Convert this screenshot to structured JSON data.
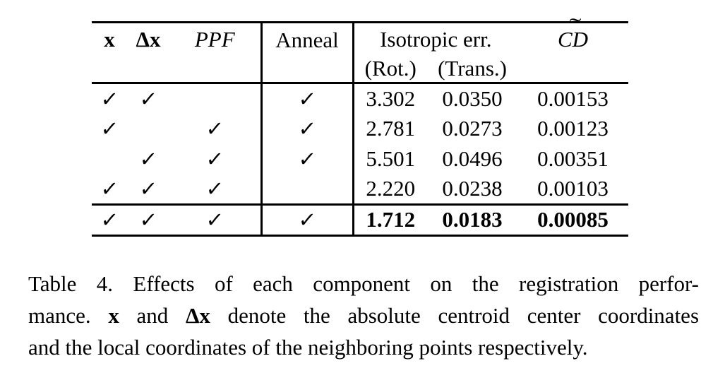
{
  "colors": {
    "text": "#000000",
    "background": "#ffffff",
    "rule": "#000000"
  },
  "table": {
    "header": {
      "x": "x",
      "dx": "Δx",
      "ppf": "PPF",
      "anneal": "Anneal",
      "isotropic": "Isotropic err.",
      "rot": "(Rot.)",
      "trans": "(Trans.)",
      "cd": "CD",
      "cd_tilde": "˜"
    },
    "check_glyph": "✓",
    "rows": [
      {
        "x": "✓",
        "dx": "✓",
        "ppf": "",
        "anneal": "✓",
        "rot": "3.302",
        "trans": "0.0350",
        "cd": "0.00153"
      },
      {
        "x": "✓",
        "dx": "",
        "ppf": "✓",
        "anneal": "✓",
        "rot": "2.781",
        "trans": "0.0273",
        "cd": "0.00123"
      },
      {
        "x": "",
        "dx": "✓",
        "ppf": "✓",
        "anneal": "✓",
        "rot": "5.501",
        "trans": "0.0496",
        "cd": "0.00351"
      },
      {
        "x": "✓",
        "dx": "✓",
        "ppf": "✓",
        "anneal": "",
        "rot": "2.220",
        "trans": "0.0238",
        "cd": "0.00103"
      },
      {
        "x": "✓",
        "dx": "✓",
        "ppf": "✓",
        "anneal": "✓",
        "rot": "1.712",
        "trans": "0.0183",
        "cd": "0.00085"
      }
    ]
  },
  "caption": {
    "line1": "Table 4. Effects of each component on the registration perfor-",
    "line2_pre": "mance. ",
    "line2_bold1": "x",
    "line2_mid": " and ",
    "line2_bold2": "Δx",
    "line2_post": " denote the absolute centroid center coordinates",
    "line3": "and the local coordinates of the neighboring points respectively."
  }
}
